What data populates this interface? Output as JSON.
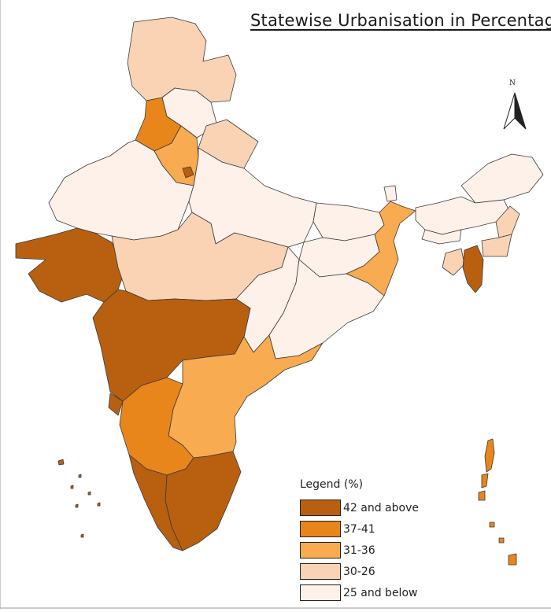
{
  "map": {
    "title": "Statewise Urbanisation in Percentage",
    "north_arrow": "N",
    "legend": {
      "title": "Legend (%)",
      "classes": [
        {
          "label": "42 and above",
          "color": "#b86010"
        },
        {
          "label": "37-41",
          "color": "#e8861c"
        },
        {
          "label": "31-36",
          "color": "#f8ab50"
        },
        {
          "label": "30-26",
          "color": "#f9d3b4"
        },
        {
          "label": "25 and below",
          "color": "#fdf1ea"
        }
      ]
    },
    "region_classes": {
      "jammu-kashmir": "30-26",
      "himachal-pradesh": "25 and below",
      "punjab": "37-41",
      "haryana": "31-36",
      "delhi": "42 and above",
      "uttarakhand": "30-26",
      "rajasthan": "25 and below",
      "uttar-pradesh": "25 and below",
      "bihar": "25 and below",
      "gujarat": "42 and above",
      "madhya-pradesh": "30-26",
      "chhattisgarh": "25 and below",
      "jharkhand": "25 and below",
      "west-bengal": "31-36",
      "odisha": "25 and below",
      "maharashtra": "42 and above",
      "telangana-andhra": "31-36",
      "karnataka": "37-41",
      "goa": "42 and above",
      "tamil-nadu": "42 and above",
      "kerala": "42 and above",
      "sikkim": "25 and below",
      "arunachal-pradesh": "25 and below",
      "assam": "25 and below",
      "meghalaya": "25 and below",
      "nagaland": "30-26",
      "manipur": "30-26",
      "tripura": "30-26",
      "mizoram": "42 and above",
      "andaman-nicobar": "37-41",
      "lakshadweep": "42 and above"
    }
  }
}
